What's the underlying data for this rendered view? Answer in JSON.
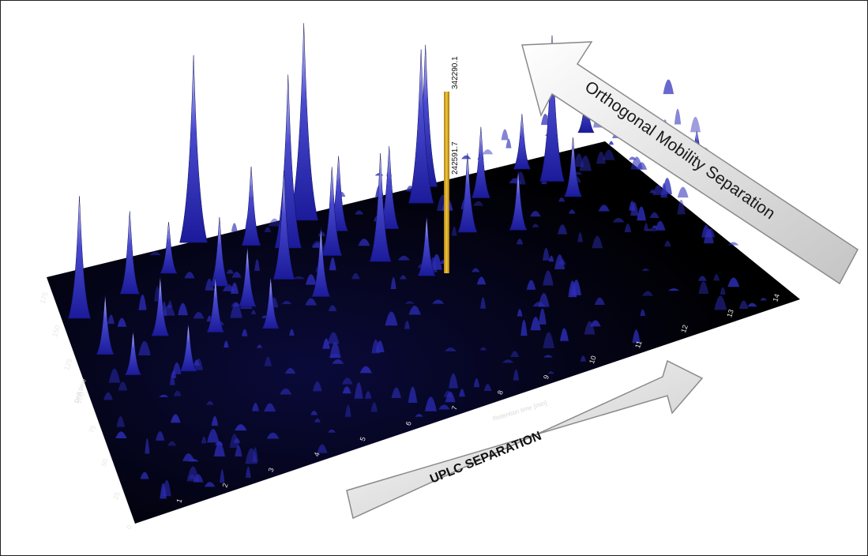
{
  "chart_data": {
    "type": "surface-3d",
    "xlabel": "Retention time [min]",
    "ylabel": "Drift time",
    "x_ticks": [
      "1",
      "2",
      "3",
      "4",
      "5",
      "6",
      "7",
      "8",
      "9",
      "10",
      "11",
      "12",
      "13",
      "14"
    ],
    "y_ticks": [
      "0",
      "25",
      "50",
      "75",
      "100",
      "125",
      "150",
      "175"
    ],
    "xlim": [
      0,
      14.5
    ],
    "ylim": [
      0,
      185
    ],
    "highlighted_peaks": [
      {
        "label": "342290.1",
        "x": 6.2,
        "y": 140
      },
      {
        "label": "242591.7",
        "x": 6.2,
        "y": 140
      }
    ],
    "peaks": [
      {
        "x": 0.35,
        "y": 150,
        "h": 0.62
      },
      {
        "x": 0.6,
        "y": 120,
        "h": 0.3
      },
      {
        "x": 1.0,
        "y": 100,
        "h": 0.22
      },
      {
        "x": 1.5,
        "y": 155,
        "h": 0.42
      },
      {
        "x": 1.8,
        "y": 120,
        "h": 0.3
      },
      {
        "x": 2.1,
        "y": 90,
        "h": 0.24
      },
      {
        "x": 2.4,
        "y": 160,
        "h": 0.26
      },
      {
        "x": 2.9,
        "y": 110,
        "h": 0.28
      },
      {
        "x": 3.1,
        "y": 175,
        "h": 0.95
      },
      {
        "x": 3.3,
        "y": 140,
        "h": 0.35
      },
      {
        "x": 3.7,
        "y": 120,
        "h": 0.3
      },
      {
        "x": 4.0,
        "y": 100,
        "h": 0.26
      },
      {
        "x": 4.2,
        "y": 160,
        "h": 0.4
      },
      {
        "x": 4.6,
        "y": 130,
        "h": 0.55
      },
      {
        "x": 4.9,
        "y": 150,
        "h": 0.88
      },
      {
        "x": 5.2,
        "y": 110,
        "h": 0.35
      },
      {
        "x": 5.4,
        "y": 165,
        "h": 1.0
      },
      {
        "x": 5.7,
        "y": 135,
        "h": 0.45
      },
      {
        "x": 6.0,
        "y": 150,
        "h": 0.38
      },
      {
        "x": 6.6,
        "y": 120,
        "h": 0.55
      },
      {
        "x": 7.0,
        "y": 140,
        "h": 0.42
      },
      {
        "x": 7.4,
        "y": 100,
        "h": 0.3
      },
      {
        "x": 7.8,
        "y": 150,
        "h": 0.78
      },
      {
        "x": 8.0,
        "y": 160,
        "h": 0.72
      },
      {
        "x": 8.5,
        "y": 120,
        "h": 0.4
      },
      {
        "x": 9.0,
        "y": 140,
        "h": 0.36
      },
      {
        "x": 9.5,
        "y": 110,
        "h": 0.3
      },
      {
        "x": 10.0,
        "y": 150,
        "h": 0.28
      },
      {
        "x": 10.5,
        "y": 135,
        "h": 0.74
      },
      {
        "x": 10.8,
        "y": 120,
        "h": 0.3
      },
      {
        "x": 11.5,
        "y": 160,
        "h": 0.22
      },
      {
        "x": 12.5,
        "y": 140,
        "h": 0.16
      },
      {
        "x": 13.5,
        "y": 120,
        "h": 0.12
      }
    ]
  },
  "annotations": {
    "orthogonal_arrow_label": "Orthogonal Mobility Separation",
    "uplc_arrow_label": "UPLC SEPARATION"
  },
  "colors": {
    "plane": "#000000",
    "peak_base": "#1a1aa8",
    "peak_tip": "#c8c8ff",
    "marker": "#d8a820",
    "arrow_fill": "#e6e6e6",
    "arrow_edge": "#8a8a8a"
  }
}
